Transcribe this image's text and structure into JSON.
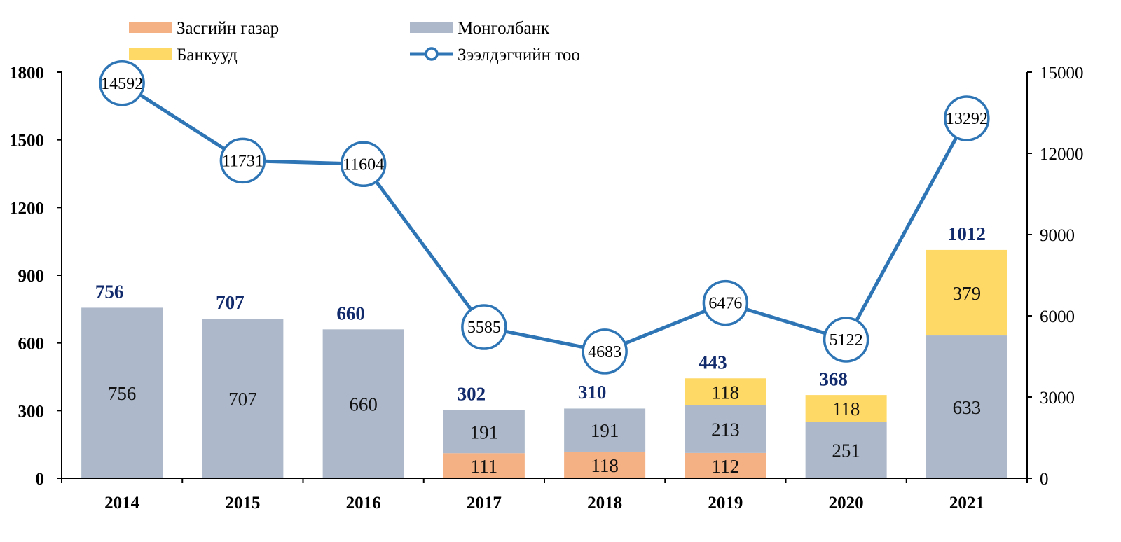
{
  "chart_data": {
    "type": "bar",
    "subtype": "stacked-bar-with-line-secondary-axis",
    "title": "",
    "categories": [
      "2014",
      "2015",
      "2016",
      "2017",
      "2018",
      "2019",
      "2020",
      "2021"
    ],
    "series": [
      {
        "name": "Засгийн газар",
        "kind": "bar",
        "axis": "left",
        "color": "#f4b183",
        "values": [
          0,
          0,
          0,
          111,
          118,
          112,
          0,
          0
        ]
      },
      {
        "name": "Монголбанк",
        "kind": "bar",
        "axis": "left",
        "color": "#adb9ca",
        "values": [
          756,
          707,
          660,
          191,
          191,
          213,
          251,
          633
        ]
      },
      {
        "name": "Банкууд",
        "kind": "bar",
        "axis": "left",
        "color": "#ffd966",
        "values": [
          0,
          0,
          0,
          0,
          0,
          118,
          118,
          379
        ]
      },
      {
        "name": "Зээлдэгчийн тоо",
        "kind": "line",
        "axis": "right",
        "color": "#2e75b6",
        "values": [
          14592,
          11731,
          11604,
          5585,
          4683,
          6476,
          5122,
          13292
        ]
      }
    ],
    "totals": [
      756,
      707,
      660,
      302,
      310,
      443,
      368,
      1012
    ],
    "total_label_color": "#102a6b",
    "y_left": {
      "min": 0,
      "max": 1800,
      "ticks": [
        "0",
        "300",
        "600",
        "900",
        "1200",
        "1500",
        "1800"
      ]
    },
    "y_right": {
      "min": 0,
      "max": 15000,
      "ticks": [
        "0",
        "3000",
        "6000",
        "9000",
        "12000",
        "15000"
      ]
    },
    "xlabel": "",
    "ylabel": "",
    "grid": false,
    "legend": {
      "placement": "top",
      "items": [
        {
          "label": "Засгийн газар",
          "swatch": "rect",
          "color": "#f4b183"
        },
        {
          "label": "Монголбанк",
          "swatch": "rect",
          "color": "#adb9ca"
        },
        {
          "label": "Банкууд",
          "swatch": "rect",
          "color": "#ffd966"
        },
        {
          "label": "Зээлдэгчийн тоо",
          "swatch": "line-marker",
          "color": "#2e75b6"
        }
      ]
    }
  }
}
